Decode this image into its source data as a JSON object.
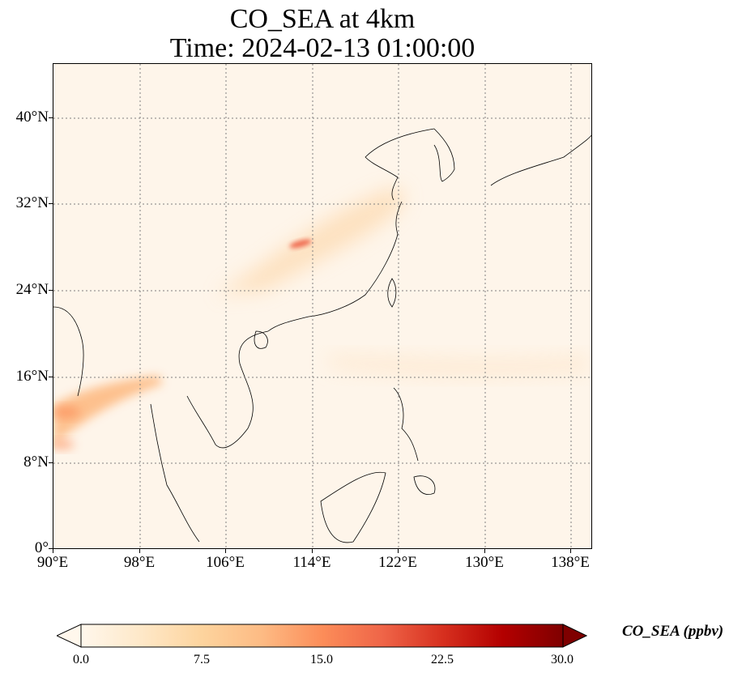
{
  "title": {
    "line1": "CO_SEA at 4km",
    "line2": "Time: 2024-02-13 01:00:00"
  },
  "map": {
    "lon_range": [
      90,
      140
    ],
    "lat_range": [
      0,
      45
    ],
    "x_ticks": [
      "90°E",
      "98°E",
      "106°E",
      "114°E",
      "122°E",
      "130°E",
      "138°E"
    ],
    "y_ticks": [
      "0°",
      "8°N",
      "16°N",
      "24°N",
      "32°N",
      "40°N"
    ],
    "gridlines": "dotted",
    "background_color": "#fef5ea",
    "coastline_color": "#000000"
  },
  "colorbar": {
    "title": "CO_SEA (ppbv)",
    "ticks": [
      "0.0",
      "7.5",
      "15.0",
      "22.5",
      "30.0"
    ],
    "range": [
      0.0,
      30.0
    ],
    "extend": "both",
    "colormap": "OrRd",
    "colors": [
      "#fff7ec",
      "#fee8c8",
      "#fdd49e",
      "#fdbb84",
      "#fc8d59",
      "#ef6548",
      "#d7301f",
      "#b30000",
      "#7f0000"
    ]
  }
}
